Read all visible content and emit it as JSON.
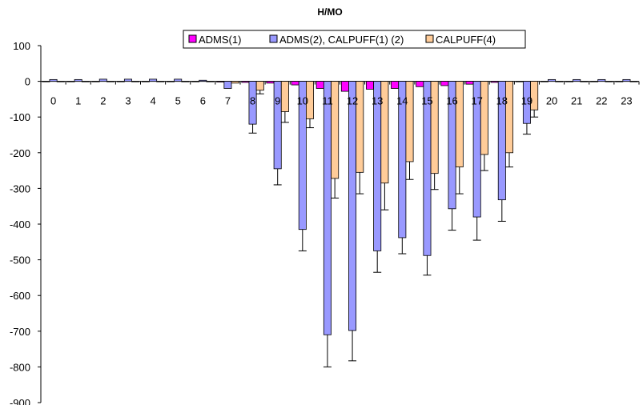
{
  "chart_data": {
    "type": "bar",
    "title": "H/MO",
    "xlabel": "",
    "ylabel": "",
    "ylim": [
      -900,
      100
    ],
    "yticks": [
      100,
      0,
      -100,
      -200,
      -300,
      -400,
      -500,
      -600,
      -700,
      -800,
      -900
    ],
    "categories": [
      "0",
      "1",
      "2",
      "3",
      "4",
      "5",
      "6",
      "7",
      "8",
      "9",
      "10",
      "11",
      "12",
      "13",
      "14",
      "15",
      "16",
      "17",
      "18",
      "19",
      "20",
      "21",
      "22",
      "23"
    ],
    "legend_position": "top",
    "series": [
      {
        "name": "ADMS(1)",
        "color": "#ff00ff",
        "values": [
          0,
          0,
          0,
          0,
          0,
          0,
          0,
          -2,
          -3,
          -5,
          -10,
          -20,
          -28,
          -22,
          -20,
          -15,
          -12,
          -8,
          -3,
          0,
          0,
          0,
          0,
          0
        ]
      },
      {
        "name": "ADMS(2), CALPUFF(1) (2)",
        "color": "#9999ff",
        "values": [
          5,
          5,
          6,
          6,
          6,
          6,
          3,
          -20,
          -120,
          -245,
          -415,
          -710,
          -698,
          -475,
          -438,
          -488,
          -357,
          -380,
          -332,
          -118,
          5,
          5,
          5,
          5
        ],
        "error": [
          0,
          0,
          0,
          0,
          0,
          0,
          0,
          0,
          25,
          45,
          60,
          90,
          85,
          60,
          45,
          55,
          60,
          65,
          60,
          30,
          0,
          0,
          0,
          0
        ]
      },
      {
        "name": "CALPUFF(4)",
        "color": "#ffcc99",
        "values": [
          0,
          0,
          0,
          0,
          0,
          0,
          0,
          -5,
          -25,
          -85,
          -105,
          -272,
          -255,
          -285,
          -225,
          -258,
          -240,
          -205,
          -200,
          -80,
          0,
          0,
          0,
          0
        ],
        "error": [
          0,
          0,
          0,
          0,
          0,
          0,
          0,
          0,
          10,
          30,
          25,
          55,
          60,
          75,
          50,
          45,
          75,
          45,
          40,
          20,
          0,
          0,
          0,
          0
        ]
      }
    ]
  }
}
